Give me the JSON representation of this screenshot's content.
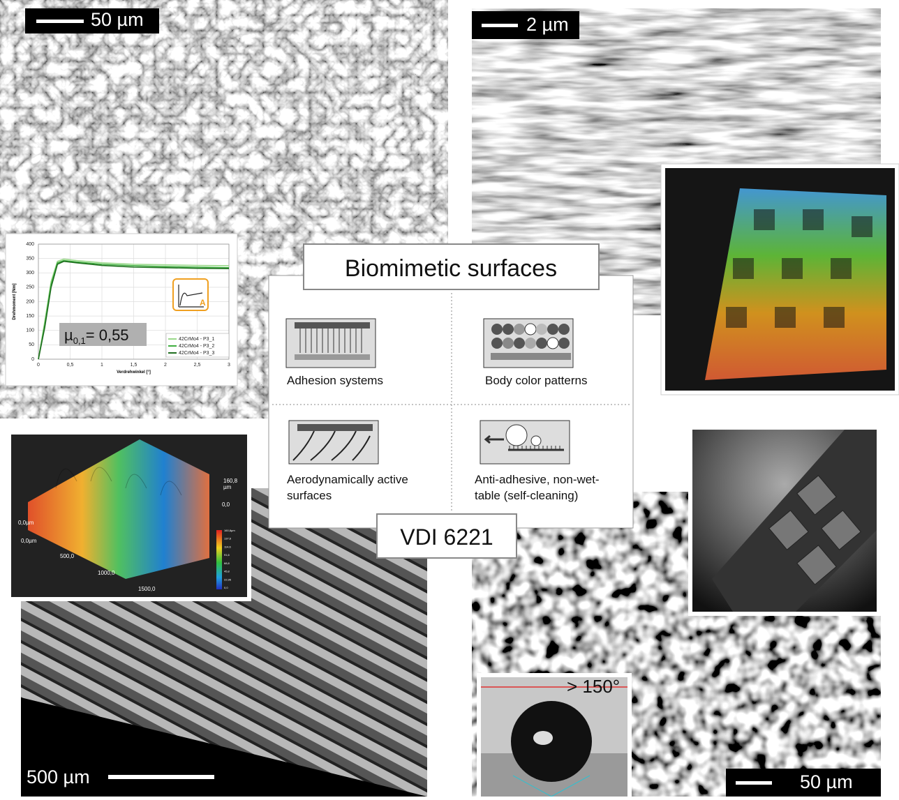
{
  "panels": {
    "top_left": {
      "scale_bar": "50 µm"
    },
    "top_right": {
      "scale_bar": "2 µm"
    },
    "bottom_left": {
      "scale_bar": "500 µm"
    },
    "bottom_right": {
      "scale_bar": "50 µm"
    }
  },
  "center": {
    "title": "Biomimetic surfaces",
    "cells": [
      [
        "Adhesion systems"
      ],
      [
        "Body color patterns"
      ],
      [
        "Aerodynamically active",
        "surfaces"
      ],
      [
        "Anti-adhesive, non-wet-",
        "table (self-cleaning)"
      ]
    ],
    "footer": "VDI 6221"
  },
  "chart_data": {
    "type": "line",
    "xlabel": "Verdrehwinkel [°]",
    "ylabel": "Drehmoment [Nm]",
    "x": [
      0,
      0.1,
      0.2,
      0.3,
      0.4,
      0.6,
      1,
      1.5,
      2,
      2.5,
      3
    ],
    "series": [
      {
        "name": "42CrMo4 - P3_1",
        "color": "#9ad88a",
        "values": [
          0,
          130,
          270,
          340,
          348,
          343,
          335,
          330,
          328,
          326,
          325
        ]
      },
      {
        "name": "42CrMo4 - P3_2",
        "color": "#3fae3f",
        "values": [
          0,
          120,
          260,
          335,
          343,
          338,
          330,
          325,
          322,
          320,
          318
        ]
      },
      {
        "name": "42CrMo4 - P3_3",
        "color": "#1f6e1f",
        "values": [
          0,
          110,
          250,
          330,
          340,
          335,
          326,
          320,
          318,
          316,
          315
        ]
      }
    ],
    "xlim": [
      0,
      3
    ],
    "ylim": [
      0,
      400
    ],
    "xticks": [
      0,
      {
        "value": 0.5,
        "label": "0,5"
      },
      1,
      {
        "value": 1.5,
        "label": "1,5"
      },
      2,
      {
        "value": 2.5,
        "label": "2,5"
      },
      3
    ],
    "yticks": [
      0,
      50,
      100,
      150,
      200,
      250,
      300,
      350,
      400
    ],
    "grid": true,
    "annotation": {
      "symbol": "µ",
      "subscript": "0,1",
      "text": "= 0,55"
    },
    "icon_label": "A"
  },
  "surface_plot": {
    "max_label": "160,8",
    "max_unit": "µm",
    "zero_label": "0,0",
    "axis_labels": [
      "0,0µm",
      "0,0µm",
      "500,0",
      "1000,0",
      "1500,0"
    ],
    "colorbar": [
      "160,8µm",
      "137,6",
      "114,6",
      "91,6",
      "68,8",
      "45,8",
      "22,96",
      "0,0"
    ]
  },
  "contact_angle": {
    "label": "> 150°"
  }
}
